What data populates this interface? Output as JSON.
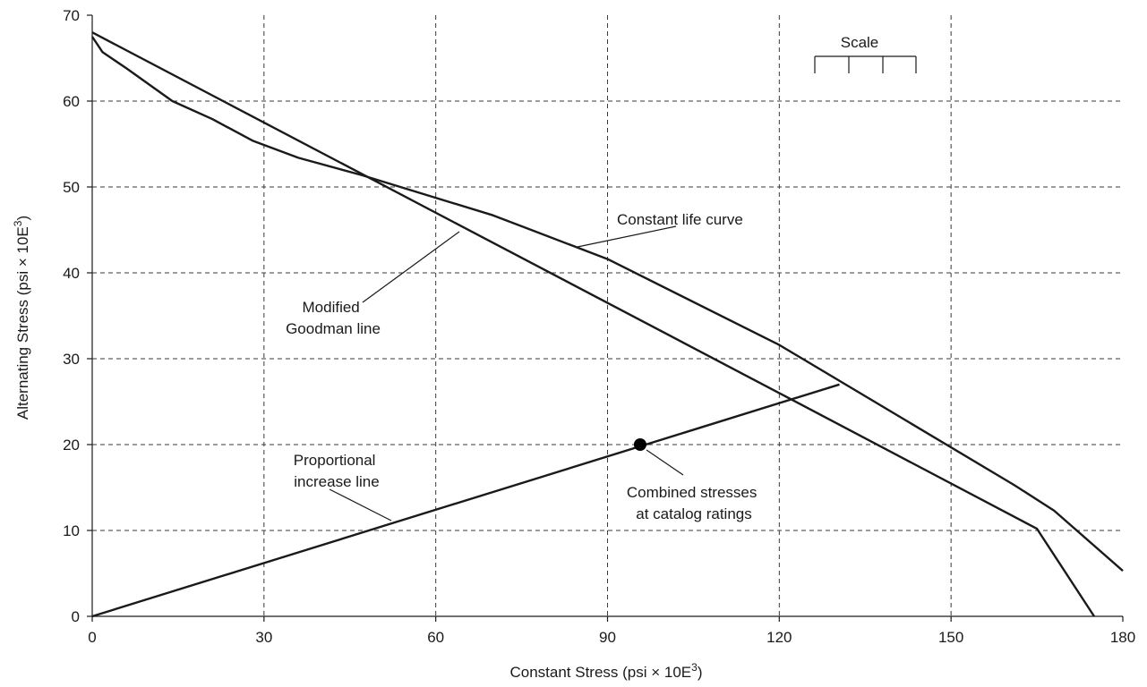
{
  "chart_data": {
    "type": "line",
    "title": "",
    "xlabel": "Constant Stress (psi × 10E",
    "xlabel_sup": "3",
    "xlabel_end": ")",
    "ylabel": "Alternating Stress (psi × 10E",
    "ylabel_sup": "3",
    "ylabel_end": ")",
    "xlim": [
      0,
      180
    ],
    "ylim": [
      0,
      70
    ],
    "xticks": [
      0,
      30,
      60,
      90,
      120,
      150,
      180
    ],
    "yticks": [
      0,
      10,
      20,
      30,
      40,
      50,
      60,
      70
    ],
    "grid": true,
    "series": [
      {
        "points": [
          [
            0,
            68
          ],
          [
            120,
            26
          ],
          [
            165,
            10.2
          ],
          [
            175,
            0
          ]
        ]
      },
      {
        "points": [
          [
            0,
            67.5
          ],
          [
            1.8,
            65.7
          ],
          [
            6,
            63.8
          ],
          [
            14,
            60
          ],
          [
            21,
            57.9
          ],
          [
            28,
            55.4
          ],
          [
            36,
            53.4
          ],
          [
            47,
            51.4
          ],
          [
            70,
            46.7
          ],
          [
            90,
            41.6
          ],
          [
            120,
            31.6
          ],
          [
            161,
            15.3
          ],
          [
            168,
            12.3
          ],
          [
            180,
            5.3
          ]
        ]
      },
      {
        "points": [
          [
            0,
            0
          ],
          [
            130.5,
            27
          ]
        ]
      }
    ],
    "marker_points": [
      {
        "x": 95.7,
        "y": 20
      }
    ],
    "annotations": [
      {
        "lines": [
          "Constant life curve"
        ]
      },
      {
        "lines": [
          "Modified",
          "Goodman line"
        ]
      },
      {
        "lines": [
          "Proportional",
          "increase line"
        ]
      },
      {
        "lines": [
          "Combined stresses",
          "at catalog ratings"
        ]
      },
      {
        "lines": [
          "Scale"
        ]
      }
    ]
  }
}
